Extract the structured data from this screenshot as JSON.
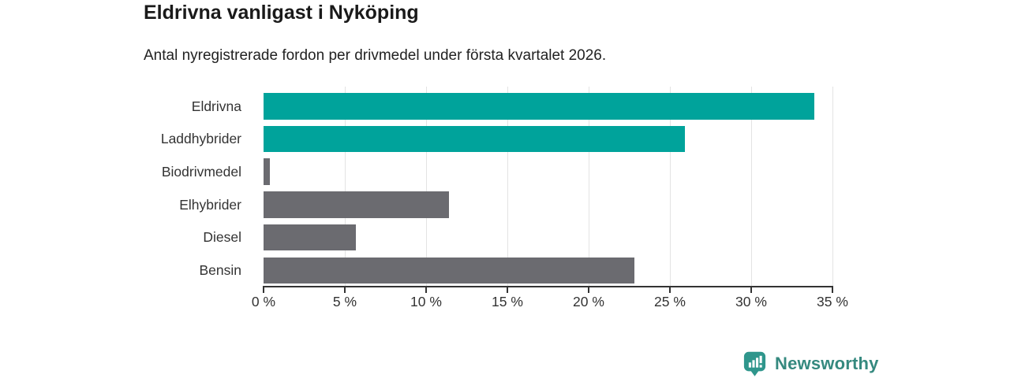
{
  "header": {
    "title": "Eldrivna vanligast i Nyköping",
    "subtitle": "Antal nyregistrerade fordon per drivmedel under första kvartalet 2026."
  },
  "chart_data": {
    "type": "bar",
    "orientation": "horizontal",
    "title": "Eldrivna vanligast i Nyköping",
    "subtitle": "Antal nyregistrerade fordon per drivmedel under första kvartalet 2026.",
    "categories": [
      "Eldrivna",
      "Laddhybrider",
      "Biodrivmedel",
      "Elhybrider",
      "Diesel",
      "Bensin"
    ],
    "values": [
      33.9,
      25.9,
      0.4,
      11.4,
      5.7,
      22.8
    ],
    "unit": "%",
    "xlim": [
      0,
      35
    ],
    "xticks": [
      0,
      5,
      10,
      15,
      20,
      25,
      30,
      35
    ],
    "xtick_labels": [
      "0 %",
      "5 %",
      "10 %",
      "15 %",
      "20 %",
      "25 %",
      "30 %",
      "35 %"
    ],
    "grid": "vertical",
    "legend": "none",
    "bar_colors": [
      "#00a39b",
      "#00a39b",
      "#6b6b70",
      "#6b6b70",
      "#6b6b70",
      "#6b6b70"
    ],
    "colors": {
      "highlight": "#00a39b",
      "default_bar": "#6b6b70",
      "gridline": "#e3e3e3",
      "axis": "#333333",
      "tick_label": "#333333",
      "category_label": "#333333"
    }
  },
  "footer": {
    "brand": "Newsworthy",
    "brand_text_color": "#35897f",
    "logo_bubble_color": "#2f968c",
    "logo_glyph_color": "#ffffff"
  }
}
